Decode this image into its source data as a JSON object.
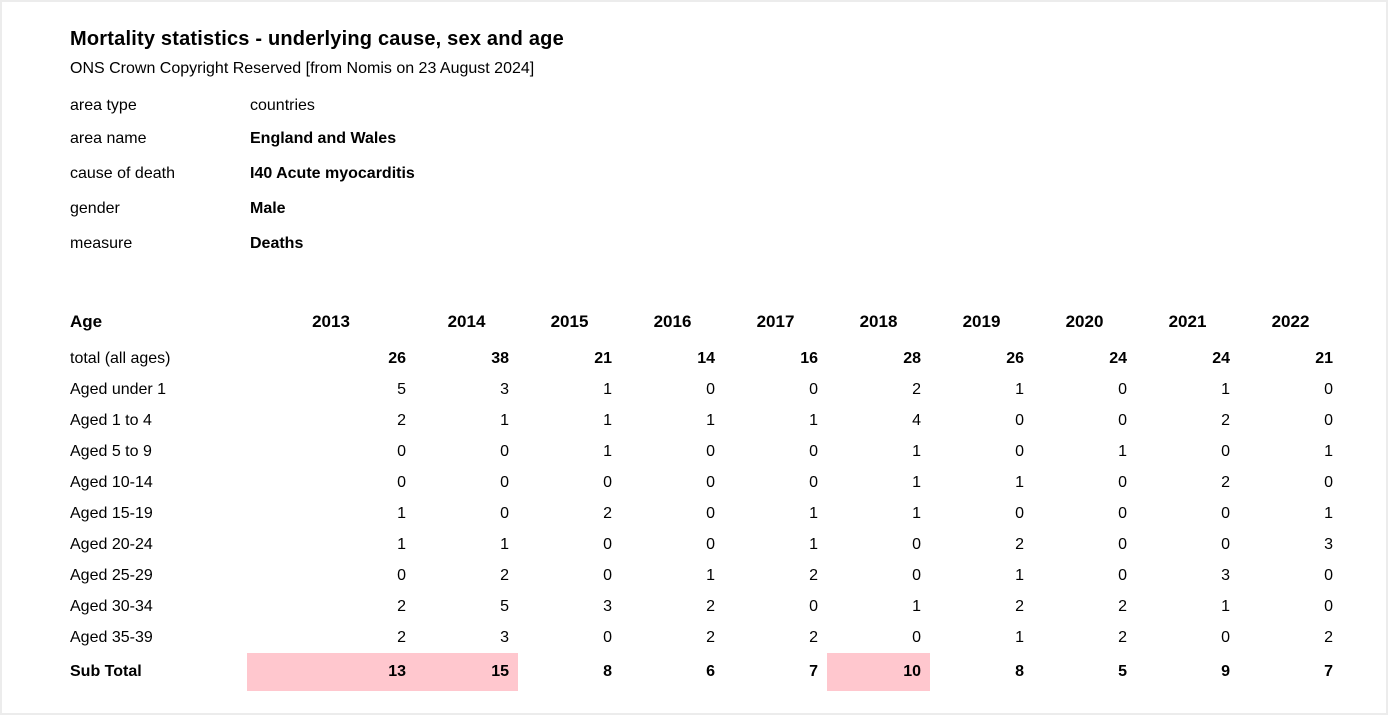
{
  "header": {
    "title": "Mortality statistics - underlying cause, sex and age",
    "subtitle": "ONS Crown Copyright Reserved [from Nomis on 23 August 2024]"
  },
  "metadata": [
    {
      "label": "area type",
      "value": "countries",
      "bold": false
    },
    {
      "label": "area name",
      "value": "England and Wales",
      "bold": true
    },
    {
      "label": "cause of death",
      "value": "I40 Acute myocarditis",
      "bold": true
    },
    {
      "label": "gender",
      "value": "Male",
      "bold": true
    },
    {
      "label": "measure",
      "value": "Deaths",
      "bold": true
    }
  ],
  "table": {
    "corner_label": "Age",
    "years": [
      "2013",
      "2014",
      "2015",
      "2016",
      "2017",
      "2018",
      "2019",
      "2020",
      "2021",
      "2022"
    ],
    "rows": [
      {
        "label": "total (all ages)",
        "values": [
          26,
          38,
          21,
          14,
          16,
          28,
          26,
          24,
          24,
          21
        ],
        "bold_values": true
      },
      {
        "label": "Aged under 1",
        "values": [
          5,
          3,
          1,
          0,
          0,
          2,
          1,
          0,
          1,
          0
        ],
        "bold_values": false
      },
      {
        "label": "Aged 1 to 4",
        "values": [
          2,
          1,
          1,
          1,
          1,
          4,
          0,
          0,
          2,
          0
        ],
        "bold_values": false
      },
      {
        "label": "Aged 5 to 9",
        "values": [
          0,
          0,
          1,
          0,
          0,
          1,
          0,
          1,
          0,
          1
        ],
        "bold_values": false
      },
      {
        "label": "Aged 10-14",
        "values": [
          0,
          0,
          0,
          0,
          0,
          1,
          1,
          0,
          2,
          0
        ],
        "bold_values": false
      },
      {
        "label": "Aged 15-19",
        "values": [
          1,
          0,
          2,
          0,
          1,
          1,
          0,
          0,
          0,
          1
        ],
        "bold_values": false
      },
      {
        "label": "Aged 20-24",
        "values": [
          1,
          1,
          0,
          0,
          1,
          0,
          2,
          0,
          0,
          3
        ],
        "bold_values": false
      },
      {
        "label": "Aged 25-29",
        "values": [
          0,
          2,
          0,
          1,
          2,
          0,
          1,
          0,
          3,
          0
        ],
        "bold_values": false
      },
      {
        "label": "Aged 30-34",
        "values": [
          2,
          5,
          3,
          2,
          0,
          1,
          2,
          2,
          1,
          0
        ],
        "bold_values": false
      },
      {
        "label": "Aged 35-39",
        "values": [
          2,
          3,
          0,
          2,
          2,
          0,
          1,
          2,
          0,
          2
        ],
        "bold_values": false
      }
    ],
    "subtotal": {
      "label": "Sub Total",
      "values": [
        13,
        15,
        8,
        6,
        7,
        10,
        8,
        5,
        9,
        7
      ],
      "highlighted_year_indices": [
        0,
        1,
        5
      ]
    }
  },
  "colors": {
    "highlight": "#ffc7ce",
    "text": "#000000",
    "background": "#ffffff"
  }
}
